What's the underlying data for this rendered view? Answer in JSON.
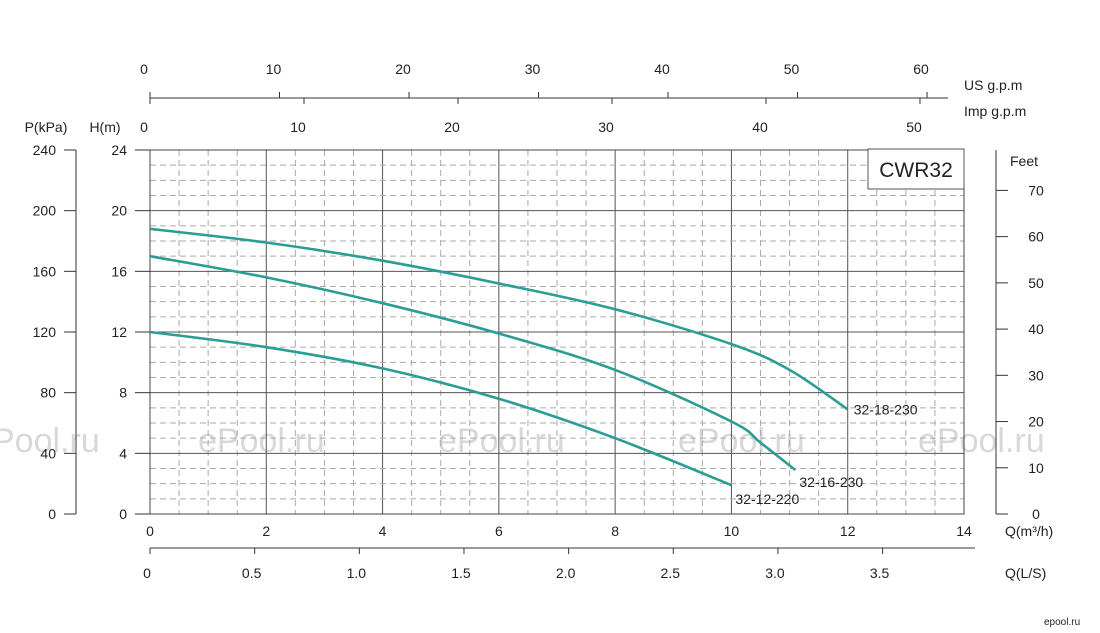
{
  "chart_data": {
    "type": "line",
    "title": "CWR32",
    "watermark": [
      "Pool.ru",
      "ePool.ru",
      "ePool.ru",
      "ePool.ru",
      "ePool.ru"
    ],
    "footer_logo": "epool.ru",
    "x_axis": {
      "label": "Q(m³/h)",
      "ticks": [
        "0",
        "2",
        "4",
        "6",
        "8",
        "10",
        "12",
        "14"
      ],
      "range": [
        0,
        14
      ]
    },
    "x_axis_ls": {
      "label": "Q(L/S)",
      "ticks": [
        "0",
        "0.5",
        "1.0",
        "1.5",
        "2.0",
        "2.5",
        "3.0",
        "3.5"
      ]
    },
    "x_axis_us": {
      "label": "US  g.p.m",
      "ticks": [
        "0",
        "10",
        "20",
        "30",
        "40",
        "50",
        "60"
      ]
    },
    "x_axis_imp": {
      "label": "Imp  g.p.m",
      "ticks": [
        "0",
        "10",
        "20",
        "30",
        "40",
        "50"
      ]
    },
    "y_axis": {
      "label": "H(m)",
      "ticks": [
        "0",
        "4",
        "8",
        "12",
        "16",
        "20",
        "24"
      ],
      "range": [
        0,
        24
      ]
    },
    "y_axis_kpa": {
      "label": "P(kPa)",
      "ticks": [
        "0",
        "40",
        "80",
        "120",
        "160",
        "200",
        "240"
      ]
    },
    "y_axis_feet": {
      "label": "Feet",
      "ticks": [
        "0",
        "10",
        "20",
        "30",
        "40",
        "50",
        "60",
        "70"
      ]
    },
    "grid": true,
    "series": [
      {
        "name": "32-18-230",
        "x": [
          0,
          2,
          4,
          6,
          8,
          10,
          11,
          12
        ],
        "y": [
          18.8,
          17.9,
          16.7,
          15.2,
          13.5,
          11.2,
          9.5,
          6.9
        ]
      },
      {
        "name": "32-16-230",
        "x": [
          0,
          2,
          4,
          6,
          8,
          10,
          10.5,
          11.1
        ],
        "y": [
          17.0,
          15.6,
          13.9,
          11.9,
          9.5,
          6.1,
          4.7,
          2.9
        ]
      },
      {
        "name": "32-12-220",
        "x": [
          0,
          2,
          4,
          6,
          8,
          10
        ],
        "y": [
          12.0,
          11.0,
          9.6,
          7.6,
          5.0,
          1.9
        ]
      }
    ],
    "colors": {
      "curve": "#2a9d94",
      "grid_major": "#555555",
      "grid_minor": "#aaaaaa"
    }
  }
}
